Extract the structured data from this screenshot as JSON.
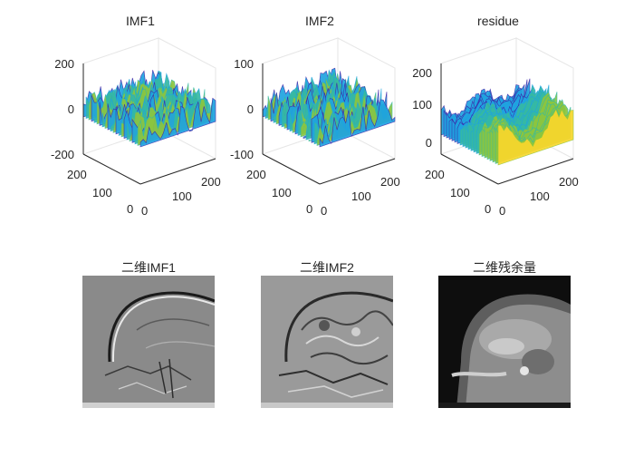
{
  "chart_data": [
    {
      "type": "surface",
      "title": "IMF1",
      "zticks": [
        "200",
        "0",
        "-200"
      ],
      "yticks": [
        "200",
        "100",
        "0"
      ],
      "xticks": [
        "0",
        "100",
        "200"
      ],
      "zlim": [
        -200,
        200
      ],
      "xlim": [
        0,
        256
      ],
      "ylim": [
        0,
        256
      ]
    },
    {
      "type": "surface",
      "title": "IMF2",
      "zticks": [
        "100",
        "0",
        "-100"
      ],
      "yticks": [
        "200",
        "100",
        "0"
      ],
      "xticks": [
        "0",
        "100",
        "200"
      ],
      "zlim": [
        -100,
        100
      ],
      "xlim": [
        0,
        256
      ],
      "ylim": [
        0,
        256
      ]
    },
    {
      "type": "surface",
      "title": "residue",
      "zticks": [
        "200",
        "100",
        "0"
      ],
      "yticks": [
        "200",
        "100",
        "0"
      ],
      "xticks": [
        "0",
        "100",
        "200"
      ],
      "zlim": [
        0,
        220
      ],
      "xlim": [
        0,
        256
      ],
      "ylim": [
        0,
        256
      ]
    },
    {
      "type": "image",
      "title": "二维IMF1",
      "colormap": "gray"
    },
    {
      "type": "image",
      "title": "二维IMF2",
      "colormap": "gray"
    },
    {
      "type": "image",
      "title": "二维残余量",
      "colormap": "gray"
    }
  ],
  "colors": {
    "parula_low": "#3e26a8",
    "parula_mid": "#1fa3e0",
    "parula_teal": "#35b9a4",
    "parula_green": "#8cc63f",
    "parula_high": "#f9d72c",
    "axis": "#262626",
    "grid": "#e6e6e6"
  }
}
